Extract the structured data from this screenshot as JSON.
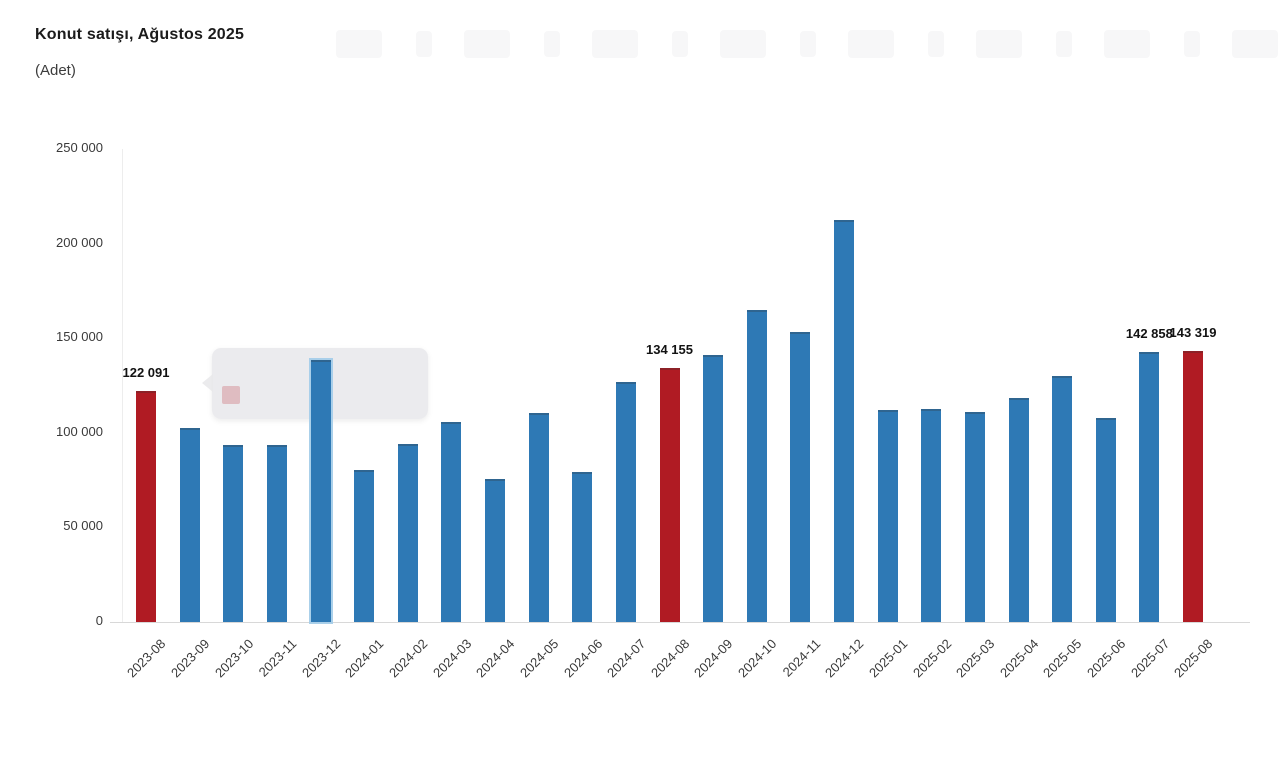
{
  "chart_data": {
    "type": "bar",
    "title": "Konut satışı, Ağustos 2025",
    "subtitle": "(Adet)",
    "categories": [
      "2023-08",
      "2023-09",
      "2023-10",
      "2023-11",
      "2023-12",
      "2024-01",
      "2024-02",
      "2024-03",
      "2024-04",
      "2024-05",
      "2024-06",
      "2024-07",
      "2024-08",
      "2024-09",
      "2024-10",
      "2024-11",
      "2024-12",
      "2025-01",
      "2025-02",
      "2025-03",
      "2025-04",
      "2025-05",
      "2025-06",
      "2025-07",
      "2025-08"
    ],
    "values": [
      122091,
      102656,
      93761,
      93514,
      138577,
      80308,
      93902,
      105476,
      75569,
      110588,
      79313,
      127088,
      134155,
      140919,
      165138,
      153014,
      212637,
      112173,
      112818,
      110795,
      118359,
      130025,
      107723,
      142858,
      143319
    ],
    "bar_color": "#2e79b5",
    "highlight_color": "#b01b23",
    "highlight_indices": [
      0,
      12,
      24
    ],
    "data_labels": [
      {
        "index": 0,
        "text": "122 091"
      },
      {
        "index": 12,
        "text": "134 155"
      },
      {
        "index": 23,
        "text": "142 858"
      },
      {
        "index": 24,
        "text": "143 319"
      }
    ],
    "yticks": [
      {
        "value": 0,
        "label": "0"
      },
      {
        "value": 50000,
        "label": "50 000"
      },
      {
        "value": 100000,
        "label": "100 000"
      },
      {
        "value": 150000,
        "label": "150 000"
      },
      {
        "value": 200000,
        "label": "200 000"
      },
      {
        "value": 250000,
        "label": "250 000"
      }
    ],
    "ylim": [
      0,
      250000
    ],
    "xlabel": "",
    "ylabel": "",
    "grid": false,
    "legend": false
  },
  "tooltip": {
    "attached_category": "2023-12",
    "text": "",
    "swatch_color": "#dfbcc1"
  }
}
